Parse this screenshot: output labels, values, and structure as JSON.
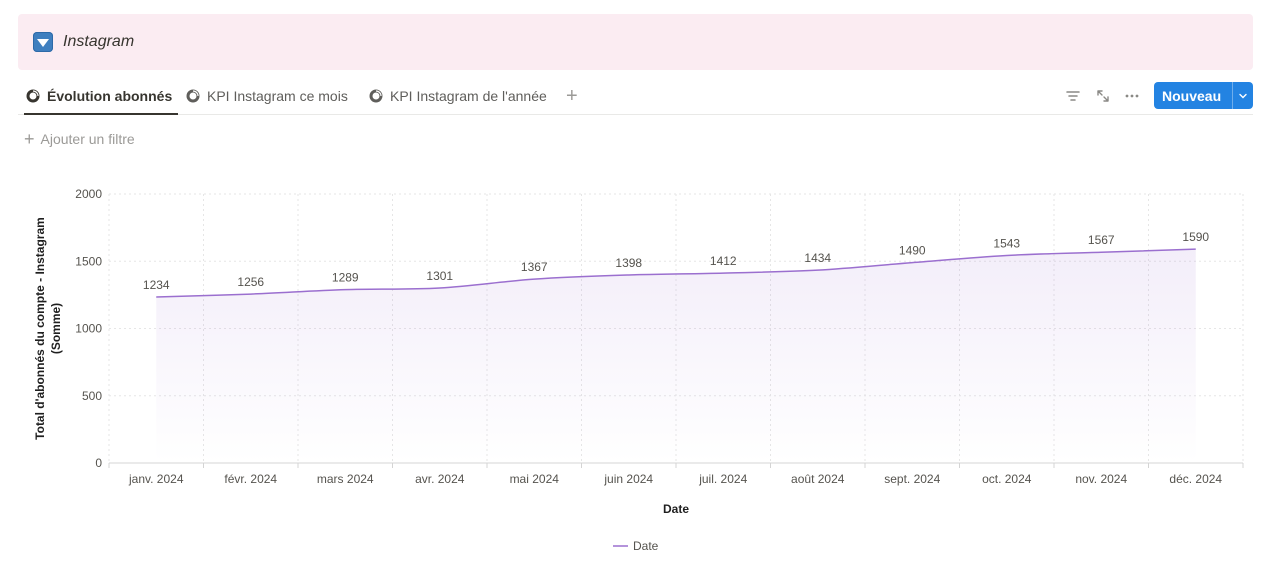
{
  "banner": {
    "title": "Instagram",
    "icon": "toggle-down-icon"
  },
  "tabs": [
    {
      "label": "Évolution abonnés",
      "active": true
    },
    {
      "label": "KPI Instagram ce mois",
      "active": false
    },
    {
      "label": "KPI Instagram de l'année",
      "active": false
    }
  ],
  "toolbar": {
    "new_label": "Nouveau"
  },
  "filter": {
    "add_label": "Ajouter un filtre"
  },
  "colors": {
    "line": "#9b6fcf",
    "accent": "#2383e2"
  },
  "chart_data": {
    "type": "area",
    "categories": [
      "janv. 2024",
      "févr. 2024",
      "mars 2024",
      "avr. 2024",
      "mai 2024",
      "juin 2024",
      "juil. 2024",
      "août 2024",
      "sept. 2024",
      "oct. 2024",
      "nov. 2024",
      "déc. 2024"
    ],
    "series": [
      {
        "name": "Date",
        "values": [
          1234,
          1256,
          1289,
          1301,
          1367,
          1398,
          1412,
          1434,
          1490,
          1543,
          1567,
          1590
        ]
      }
    ],
    "xlabel": "Date",
    "ylabel_lines": [
      "Total d'abonnés du compte - Instagram",
      "(Somme)"
    ],
    "ylim": [
      0,
      2000
    ],
    "yticks": [
      0,
      500,
      1000,
      1500,
      2000
    ],
    "grid": true,
    "legend": "bottom-center",
    "data_labels": true
  }
}
